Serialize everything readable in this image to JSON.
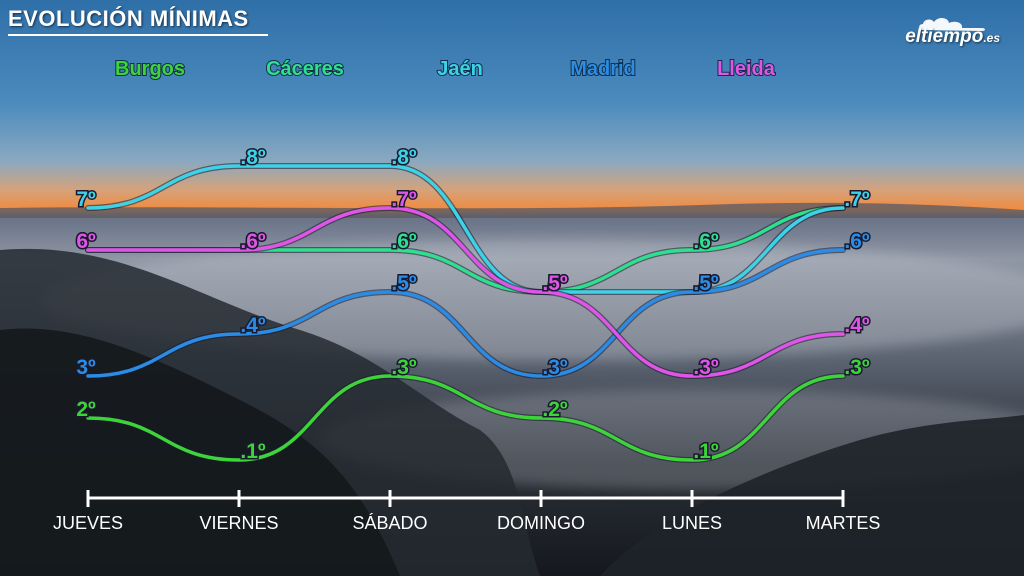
{
  "title": "EVOLUCIÓN MÍNIMAS",
  "logo": {
    "main": "eltiempo",
    "suffix": ".es"
  },
  "chart_data": {
    "type": "line",
    "title": "EVOLUCIÓN MÍNIMAS",
    "categories": [
      "JUEVES",
      "VIERNES",
      "SÁBADO",
      "DOMINGO",
      "LUNES",
      "MARTES"
    ],
    "unit": "º",
    "legend_position": "top",
    "series": [
      {
        "name": "Burgos",
        "color": "#3dd43a",
        "values": [
          2,
          1,
          3,
          2,
          1,
          3
        ]
      },
      {
        "name": "Cáceres",
        "color": "#2ee08e",
        "values": [
          6,
          6,
          6,
          5,
          6,
          7
        ]
      },
      {
        "name": "Jaén",
        "color": "#3cd3e8",
        "values": [
          7,
          8,
          8,
          5,
          5,
          7
        ]
      },
      {
        "name": "Madrid",
        "color": "#2b8ce6",
        "values": [
          3,
          4,
          5,
          3,
          5,
          6
        ]
      },
      {
        "name": "Lleida",
        "color": "#e055e8",
        "values": [
          6,
          6,
          7,
          5,
          3,
          4
        ]
      }
    ]
  }
}
